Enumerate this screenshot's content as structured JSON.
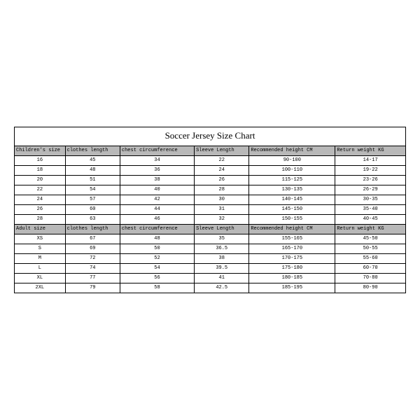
{
  "title": "Soccer Jersey Size Chart",
  "headers_children": [
    "Children's size",
    "clothes length",
    "chest circumference",
    "Sleeve Length",
    "Recommended height CM",
    "Return weight KG"
  ],
  "headers_adult": [
    "Adult size",
    "clothes length",
    "chest circumference",
    "Sleeve Length",
    "Recommended height CM",
    "Return weight KG"
  ],
  "children_rows": [
    [
      "16",
      "45",
      "34",
      "22",
      "90-100",
      "14-17"
    ],
    [
      "18",
      "48",
      "36",
      "24",
      "100-110",
      "19-22"
    ],
    [
      "20",
      "51",
      "38",
      "26",
      "115-125",
      "23-26"
    ],
    [
      "22",
      "54",
      "40",
      "28",
      "130-135",
      "26-29"
    ],
    [
      "24",
      "57",
      "42",
      "30",
      "140-145",
      "30-35"
    ],
    [
      "26",
      "60",
      "44",
      "31",
      "145-150",
      "35-40"
    ],
    [
      "28",
      "63",
      "46",
      "32",
      "150-155",
      "40-45"
    ]
  ],
  "adult_rows": [
    [
      "XS",
      "67",
      "48",
      "35",
      "155-165",
      "45-50"
    ],
    [
      "S",
      "69",
      "50",
      "36.5",
      "165-170",
      "50-55"
    ],
    [
      "M",
      "72",
      "52",
      "38",
      "170-175",
      "55-60"
    ],
    [
      "L",
      "74",
      "54",
      "39.5",
      "175-180",
      "60-70"
    ],
    [
      "XL",
      "77",
      "56",
      "41",
      "180-185",
      "70-80"
    ],
    [
      "2XL",
      "79",
      "58",
      "42.5",
      "185-195",
      "80-90"
    ]
  ],
  "style": {
    "type": "table",
    "background_color": "#ffffff",
    "header_bg": "#b8b8b8",
    "border_color": "#000000",
    "title_font": "Times New Roman",
    "body_font": "Courier New",
    "title_fontsize": 13,
    "cell_fontsize": 7,
    "col_widths_pct": [
      13,
      14,
      19,
      14,
      22,
      18
    ]
  }
}
